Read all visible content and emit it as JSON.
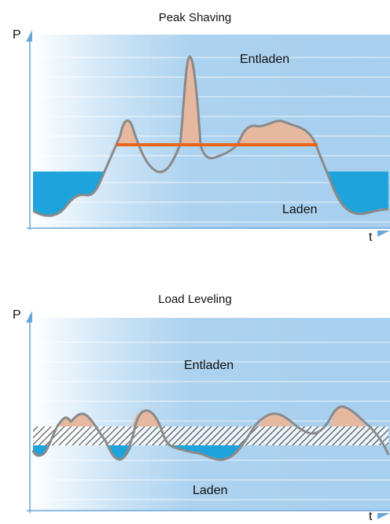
{
  "diagrams": [
    {
      "title": "Peak Shaving",
      "y_axis_label": "P",
      "x_axis_label": "t",
      "upper_region_label": "Entladen",
      "lower_region_label": "Laden"
    },
    {
      "title": "Load Leveling",
      "y_axis_label": "P",
      "x_axis_label": "t",
      "upper_region_label": "Entladen",
      "lower_region_label": "Laden"
    }
  ],
  "colors": {
    "background_gradient_start": "#ffffff",
    "background_gradient_end": "#a9d0ee",
    "grid_line": "#ffffff",
    "axis": "#6aa6d8",
    "load_curve": "#8a8a8a",
    "discharge_fill": "#e6b8a0",
    "charge_fill": "#1ea3dc",
    "threshold_line": "#e8651a",
    "leveling_band_stripe": "#555555"
  }
}
